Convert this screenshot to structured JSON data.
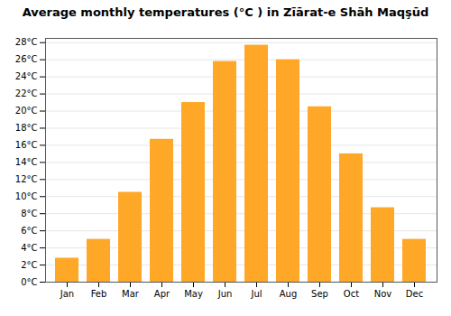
{
  "chart_data": {
    "type": "bar",
    "title": "Average monthly temperatures (°C ) in Zīārat-e Shāh Maqşūd",
    "categories": [
      "Jan",
      "Feb",
      "Mar",
      "Apr",
      "May",
      "Jun",
      "Jul",
      "Aug",
      "Sep",
      "Oct",
      "Nov",
      "Dec"
    ],
    "values": [
      2.8,
      5.0,
      10.5,
      16.7,
      21.0,
      25.8,
      27.7,
      26.0,
      20.5,
      15.0,
      8.7,
      5.0
    ],
    "color": "#FFA726",
    "ylim": [
      0,
      28.5
    ],
    "yticks": [
      {
        "value": 0,
        "label": "0°C"
      },
      {
        "value": 2,
        "label": "2°C"
      },
      {
        "value": 4,
        "label": "4°C"
      },
      {
        "value": 6,
        "label": "6°C"
      },
      {
        "value": 8,
        "label": "8°C"
      },
      {
        "value": 10,
        "label": "10°C"
      },
      {
        "value": 12,
        "label": "12°C"
      },
      {
        "value": 14,
        "label": "14°C"
      },
      {
        "value": 16,
        "label": "16°C"
      },
      {
        "value": 18,
        "label": "18°C"
      },
      {
        "value": 20,
        "label": "20°C"
      },
      {
        "value": 22,
        "label": "22°C"
      },
      {
        "value": 24,
        "label": "24°C"
      },
      {
        "value": 26,
        "label": "26°C"
      },
      {
        "value": 28,
        "label": "28°C"
      }
    ],
    "grid": true
  }
}
